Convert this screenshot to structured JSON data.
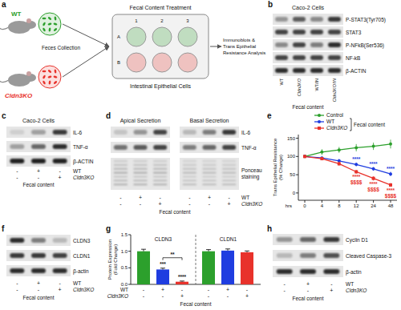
{
  "panels": [
    {
      "letter": "a",
      "mice": [
        {
          "label": "WT",
          "color": "#2ca02c"
        },
        {
          "label": "Cldn3KO",
          "color": "#e8322b"
        }
      ],
      "collection": "Feces Collection",
      "treatment": "Fecal Content Treatment",
      "cells": "Intestinal Epithelial Cells",
      "plate_cols": [
        "1",
        "2",
        "3"
      ],
      "plate_rows": [
        "A",
        "B"
      ],
      "analysis": [
        "Immunoblots &",
        "Trans Epithelial",
        "Resistance Analysis"
      ]
    },
    {
      "letter": "b",
      "title": "Caco-2 Cells",
      "rows": [
        {
          "label": "P-STAT3(Tyr705)",
          "bands": [
            0.35,
            0.6,
            0.4,
            0.75
          ]
        },
        {
          "label": "STAT3",
          "bands": [
            0.7,
            0.7,
            0.7,
            0.7
          ]
        },
        {
          "label": "P-NFkB(Ser536)",
          "bands": [
            0.4,
            0.7,
            0.45,
            0.8
          ]
        },
        {
          "label": "NF-kB",
          "bands": [
            0.7,
            0.7,
            0.7,
            0.7
          ]
        },
        {
          "label": "β-ACTIN",
          "bands": [
            0.8,
            0.8,
            0.8,
            0.8
          ]
        }
      ],
      "lanes": [
        "WT",
        "Cldn3KO",
        "WT/IN",
        "Cldn3KO/IN"
      ],
      "footer": "Fecal content"
    },
    {
      "letter": "c",
      "title": "Caco-2 Cells",
      "rows": [
        {
          "label": "IL-6",
          "bands": [
            0.1,
            0.3,
            0.75
          ]
        },
        {
          "label": "TNF-α",
          "bands": [
            0.3,
            0.55,
            0.8
          ]
        },
        {
          "label": "β-ACTIN",
          "bands": [
            0.85,
            0.85,
            0.85
          ]
        }
      ],
      "treatment_rows": [
        {
          "label": "WT",
          "signs": [
            "-",
            "+",
            "-"
          ]
        },
        {
          "label": "Cldn3KO",
          "signs": [
            "-",
            "-",
            "+"
          ]
        }
      ],
      "footer": "Fecal content"
    },
    {
      "letter": "d",
      "titles": [
        "Apical Secretion",
        "Basal Secretion"
      ],
      "rows": [
        {
          "label": "IL-6",
          "bands": [
            0.15,
            0.35,
            0.7,
            0.2,
            0.45,
            0.75
          ]
        },
        {
          "label": "TNF-α",
          "bands": [
            0.5,
            0.6,
            0.7,
            0.45,
            0.55,
            0.7
          ]
        },
        {
          "label": [
            "Ponceau",
            "staining"
          ],
          "bands": [
            0.25,
            0.25,
            0.25,
            0.2,
            0.2,
            0.2
          ]
        }
      ],
      "treatment_rows": [
        {
          "label": "WT",
          "signs": [
            "-",
            "+",
            "-",
            "-",
            "+",
            "-"
          ]
        },
        {
          "label": "Cldn3KO",
          "signs": [
            "-",
            "-",
            "+",
            "-",
            "-",
            "+"
          ]
        }
      ],
      "footer": "Fecal content"
    },
    {
      "letter": "f",
      "rows": [
        {
          "label": "CLDN3",
          "bands": [
            0.8,
            0.45,
            0.2
          ]
        },
        {
          "label": "CLDN1",
          "bands": [
            0.75,
            0.75,
            0.72
          ]
        },
        {
          "label": "β-actin",
          "bands": [
            0.8,
            0.8,
            0.8
          ]
        }
      ],
      "treatment_rows": [
        {
          "label": "WT",
          "signs": [
            "-",
            "+",
            "-"
          ]
        },
        {
          "label": "Cldn3KO",
          "signs": [
            "-",
            "-",
            "+"
          ]
        }
      ],
      "footer": "Fecal content"
    },
    {
      "letter": "h",
      "rows": [
        {
          "label": "Cyclin D1",
          "bands": [
            0.35,
            0.55,
            0.75
          ]
        },
        {
          "label": "Cleaved Caspase-3",
          "bands": [
            0.2,
            0.45,
            0.65
          ]
        },
        {
          "label": "β-actin",
          "bands": [
            0.8,
            0.8,
            0.8
          ]
        }
      ],
      "treatment_rows": [
        {
          "label": "WT",
          "signs": [
            "-",
            "+",
            "-"
          ]
        },
        {
          "label": "Cldn3KO",
          "signs": [
            "-",
            "-",
            "+"
          ]
        }
      ],
      "footer": "Fecal content"
    }
  ],
  "chart_data": [
    {
      "panel": "e",
      "type": "line",
      "ylabel": [
        "Trans Epithelial Resistance",
        "(% Change)"
      ],
      "xlabel": "hrs",
      "categories": [
        "0",
        "4",
        "8",
        "12",
        "24",
        "48"
      ],
      "series": [
        {
          "name": "Control",
          "color": "#2ca02c",
          "marker": "circle",
          "values": [
            100,
            112,
            118,
            124,
            128,
            134
          ],
          "errors": [
            4,
            8,
            8,
            10,
            10,
            12
          ]
        },
        {
          "name": "WT",
          "color": "#1f3de0",
          "marker": "circle",
          "values": [
            100,
            96,
            88,
            78,
            66,
            52
          ],
          "errors": [
            3,
            4,
            5,
            5,
            5,
            6
          ]
        },
        {
          "name": "Cldn3KO",
          "color": "#e8322b",
          "marker": "square",
          "values": [
            100,
            94,
            80,
            58,
            40,
            22
          ],
          "errors": [
            3,
            4,
            5,
            5,
            6,
            5
          ]
        }
      ],
      "ylim": [
        -20,
        160
      ],
      "yticks": [
        0,
        50,
        100,
        150
      ],
      "grid": false,
      "legend": "top",
      "legend_title": "Fecal content",
      "annotations": [
        {
          "text": "****",
          "series": 1,
          "index": 3
        },
        {
          "text": "****",
          "series": 1,
          "index": 4
        },
        {
          "text": "****",
          "series": 1,
          "index": 5
        },
        {
          "text": "****",
          "series": 2,
          "index": 3
        },
        {
          "text": "****",
          "series": 2,
          "index": 4
        },
        {
          "text": "****",
          "series": 2,
          "index": 5
        },
        {
          "text": "$$$$",
          "series": 2,
          "index": 3
        },
        {
          "text": "$$$$",
          "series": 2,
          "index": 4
        },
        {
          "text": "$$$$",
          "series": 2,
          "index": 5
        }
      ]
    },
    {
      "panel": "g",
      "type": "bar",
      "ylabel": [
        "Protein Expression",
        "(Fold Change)"
      ],
      "categories": [
        "CLDN3",
        "CLDN1"
      ],
      "series": [
        {
          "color": "#2ca02c",
          "values": [
            1.0,
            1.0
          ],
          "errors": [
            0.06,
            0.05
          ]
        },
        {
          "color": "#1f3de0",
          "values": [
            0.45,
            1.02
          ],
          "errors": [
            0.04,
            0.05
          ]
        },
        {
          "color": "#e8322b",
          "values": [
            0.08,
            0.97
          ],
          "errors": [
            0.02,
            0.04
          ]
        }
      ],
      "ylim": [
        0,
        1.5
      ],
      "yticks": [
        {
          "value": 0,
          "label": "0.0"
        },
        {
          "value": 0.5,
          "label": "0.5"
        },
        {
          "value": 1,
          "label": "1.0"
        },
        {
          "value": 1.5,
          "label": "1.5"
        }
      ],
      "grid": false,
      "annotations": [
        {
          "text": "***",
          "series": 1,
          "index": 0
        },
        {
          "text": "****",
          "series": 2,
          "index": 0
        },
        {
          "text": "**",
          "series": [
            1,
            2
          ],
          "index": 0
        }
      ],
      "x_rows": [
        {
          "label": "WT",
          "signs": [
            "-",
            "+",
            "-",
            "-",
            "+",
            "-"
          ]
        },
        {
          "label": "Cldn3KO",
          "signs": [
            "-",
            "-",
            "+",
            "-",
            "-",
            "+"
          ]
        }
      ],
      "footer": "Fecal content"
    }
  ]
}
